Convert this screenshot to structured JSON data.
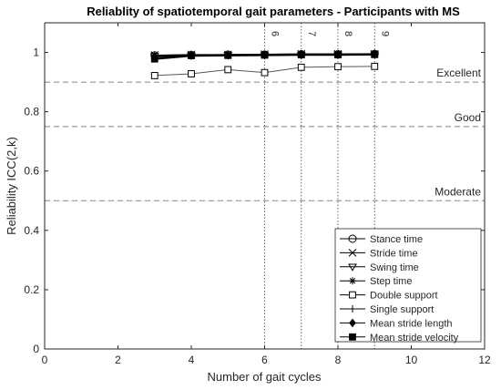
{
  "chart_data": {
    "type": "line",
    "title": "Reliablity of spatiotemporal gait parameters - Participants with MS",
    "xlabel": "Number of gait cycles",
    "ylabel": "Reliability ICC(2,k)",
    "xlim": [
      0,
      12
    ],
    "ylim": [
      0,
      1.1
    ],
    "xticks": [
      0,
      2,
      4,
      6,
      8,
      10,
      12
    ],
    "yticks": [
      0,
      0.2,
      0.4,
      0.6,
      0.8,
      1
    ],
    "x": [
      3,
      4,
      5,
      6,
      7,
      8,
      9
    ],
    "grid": false,
    "legend_position": "bottom-right",
    "reference_lines": [
      {
        "label": "Excellent",
        "value": 0.9
      },
      {
        "label": "Good",
        "value": 0.75
      },
      {
        "label": "Moderate",
        "value": 0.5
      }
    ],
    "vertical_markers": [
      {
        "label": "6",
        "value": 6
      },
      {
        "label": "7",
        "value": 7
      },
      {
        "label": "8",
        "value": 8
      },
      {
        "label": "9",
        "value": 9
      }
    ],
    "series": [
      {
        "name": "Stance time",
        "marker": "circle",
        "values": [
          0.99,
          0.992,
          0.993,
          0.993,
          0.994,
          0.994,
          0.995
        ]
      },
      {
        "name": "Stride time",
        "marker": "x",
        "values": [
          0.991,
          0.993,
          0.993,
          0.994,
          0.995,
          0.995,
          0.995
        ]
      },
      {
        "name": "Swing time",
        "marker": "triangle-down",
        "values": [
          0.988,
          0.99,
          0.991,
          0.991,
          0.992,
          0.993,
          0.993
        ]
      },
      {
        "name": "Step time",
        "marker": "asterisk",
        "values": [
          0.99,
          0.992,
          0.992,
          0.993,
          0.994,
          0.994,
          0.994
        ]
      },
      {
        "name": "Double support",
        "marker": "square-open",
        "values": [
          0.922,
          0.928,
          0.942,
          0.932,
          0.95,
          0.952,
          0.953
        ]
      },
      {
        "name": "Single support",
        "marker": "plus",
        "values": [
          0.985,
          0.988,
          0.99,
          0.99,
          0.991,
          0.992,
          0.992
        ]
      },
      {
        "name": "Mean stride length",
        "marker": "diamond-filled",
        "values": [
          0.987,
          0.99,
          0.991,
          0.992,
          0.993,
          0.993,
          0.994
        ]
      },
      {
        "name": "Mean stride velocity",
        "marker": "square-filled",
        "values": [
          0.978,
          0.989,
          0.99,
          0.991,
          0.992,
          0.992,
          0.993
        ]
      }
    ]
  }
}
